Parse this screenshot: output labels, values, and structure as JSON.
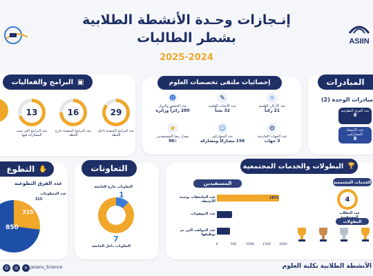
{
  "header": {
    "title_line1": "إنـجازات وحـدة الأنشطة الطلابية",
    "title_line2": "بشطر الطالبات",
    "year": "2025-2024",
    "logo_right_text": "ASIIN"
  },
  "colors": {
    "navy": "#1e2f66",
    "orange": "#f0a72a",
    "blue": "#3a7bd5"
  },
  "programs": {
    "title": "البرامج والفعاليات",
    "items": [
      {
        "value": "29",
        "label": "عدد البرامج المنفذة داخل الخطة"
      },
      {
        "value": "16",
        "label": "عدد البرامج المنفذة خارج الخطة"
      },
      {
        "value": "13",
        "label": "عدد البرامج التي تمت المشاركة فيها"
      }
    ]
  },
  "science": {
    "title": "إحصائيات ملتقى تخصصات العلوم",
    "stats": [
      {
        "value": "21 ركناً",
        "label": "عدد الأركان العلمية",
        "icon": "atom-icon"
      },
      {
        "value": "32 بحثاً",
        "label": "عدد الأبحاث العلمية",
        "icon": "research-icon"
      },
      {
        "value": "280 زائراً وزائرة",
        "label": "عدد الحضور والزوار",
        "icon": "visitors-icon"
      },
      {
        "value": "3 جهات",
        "label": "عدد الجهات الخارجية",
        "icon": "partners-icon"
      },
      {
        "value": "156 مشاركاً ومشاركة",
        "label": "عدد المشاركين",
        "icon": "participants-icon"
      },
      {
        "value": "96٪",
        "label": "معدل رضا المستفيدين",
        "icon": "satisfaction-icon"
      }
    ]
  },
  "initiatives": {
    "title": "المبادرات",
    "subtitle": "مبادرات الوحدة (2)",
    "cards": [
      {
        "value": "8",
        "label": "عدد الفرق التطوعية"
      },
      {
        "value": "8",
        "label": "عدد الأعضاء المشاركين"
      }
    ]
  },
  "cooperation": {
    "title": "التعاونات",
    "outside_label": "التعاونات خارج الجامعة",
    "outside_value": "1",
    "inside_label": "التعاونات داخل الجامعة",
    "inside_value": "7"
  },
  "volunteer": {
    "title": "التطوع",
    "subtitle": "عدد الفرق التطوعية",
    "volunteers_label": "عدد المتطوعات",
    "volunteers_value": "315",
    "other_value": "850"
  },
  "community": {
    "title": "البطولات والخدمات المجتمعية",
    "beneficiaries_title": "المستفيدين",
    "services_title": "الخدمات المجتمعية",
    "services_count": "4",
    "services_label": "عدد البطلات المستفيدة",
    "champions_title": "البطولات",
    "bars": [
      {
        "label": "عدد الملتحقات بوحدة الأنشطة",
        "value": 1872,
        "display": "1872"
      },
      {
        "label": "عدد الموهوبات",
        "value": 462,
        "display": "462"
      },
      {
        "label": "عدد المواهب التي تم توظيفها",
        "value": 388,
        "display": "388"
      }
    ],
    "axis_ticks": [
      "0",
      "500",
      "1000",
      "1500",
      "2000"
    ]
  },
  "footer": {
    "handle": "Jazanu_Science",
    "unit_name": "الأنشطة الطلابية بكلية العلوم"
  }
}
